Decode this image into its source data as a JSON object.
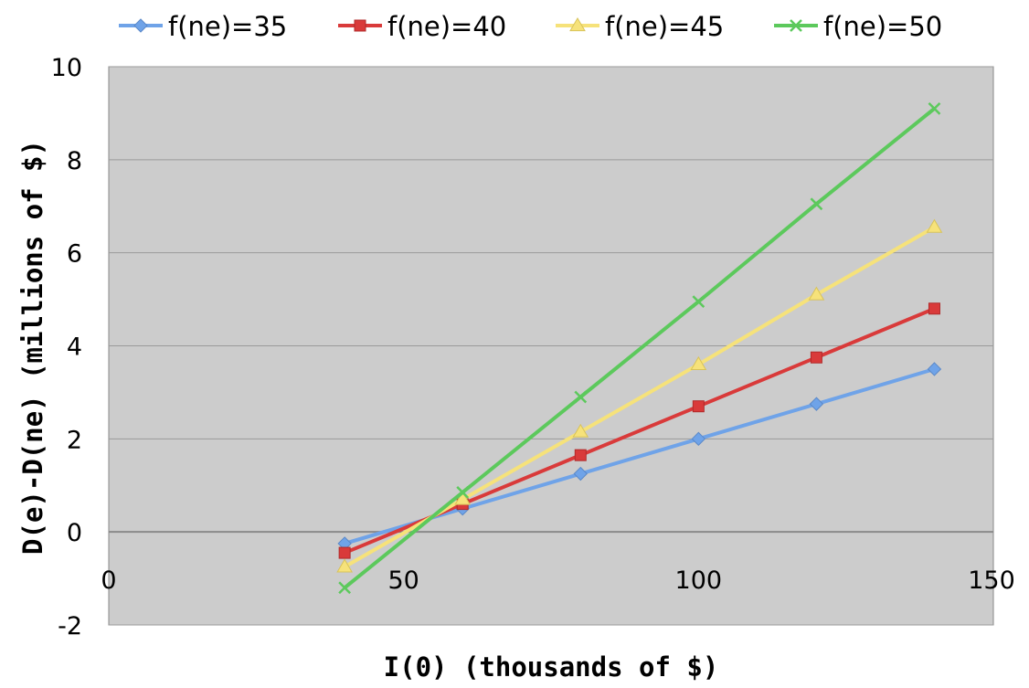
{
  "chart_data": {
    "type": "line",
    "title": "",
    "xlabel": "I(0) (thousands of $)",
    "ylabel": "D(e)-D(ne) (millions of $)",
    "xlim": [
      0,
      150
    ],
    "ylim": [
      -2,
      10
    ],
    "x_ticks": [
      0,
      50,
      100,
      150
    ],
    "y_ticks": [
      -2,
      0,
      2,
      4,
      6,
      8,
      10
    ],
    "grid": "horizontal",
    "legend_position": "top",
    "plot_background": "#cccccc",
    "x": [
      40,
      60,
      80,
      100,
      120,
      140
    ],
    "series": [
      {
        "name": "f(ne)=35",
        "color": "#6fa3e8",
        "marker": "diamond",
        "values": [
          -0.25,
          0.5,
          1.25,
          2.0,
          2.75,
          3.5
        ]
      },
      {
        "name": "f(ne)=40",
        "color": "#d93a3a",
        "marker": "square",
        "values": [
          -0.45,
          0.6,
          1.65,
          2.7,
          3.75,
          4.8
        ]
      },
      {
        "name": "f(ne)=45",
        "color": "#f6e27a",
        "marker": "triangle",
        "values": [
          -0.75,
          0.7,
          2.15,
          3.6,
          5.1,
          6.55
        ]
      },
      {
        "name": "f(ne)=50",
        "color": "#5cc95c",
        "marker": "x",
        "values": [
          -1.2,
          0.85,
          2.9,
          4.95,
          7.05,
          9.1
        ]
      }
    ]
  }
}
